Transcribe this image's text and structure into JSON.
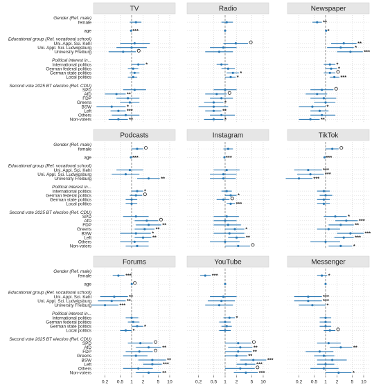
{
  "chart_data": {
    "type": "scatter",
    "subtype": "coefficient-plot (odds ratios with confidence intervals)",
    "x_scale": "log",
    "x_ticks": [
      0.2,
      0.5,
      1,
      2,
      5,
      10
    ],
    "x_tick_labels": [
      "0.2",
      "0.5",
      "1",
      "2",
      "5",
      "10"
    ],
    "xlim": [
      0.1,
      14
    ],
    "reference_line_x": 1,
    "grid": true,
    "point_color": "#2a78b4",
    "rows": [
      {
        "key": "h_gender",
        "label": "Gender (Ref. male)",
        "header": true
      },
      {
        "key": "female",
        "label": "female"
      },
      {
        "key": "gap1",
        "label": ""
      },
      {
        "key": "age",
        "label": "age"
      },
      {
        "key": "gap2",
        "label": ""
      },
      {
        "key": "h_edu",
        "label": "Educational group (Ref. vocational school)",
        "header": true
      },
      {
        "key": "kehl",
        "label": "Uni. Appl. Sci. Kehl"
      },
      {
        "key": "ludw",
        "label": "Uni. Appl. Sci. Ludwigsburg"
      },
      {
        "key": "freib",
        "label": "University Freiburg"
      },
      {
        "key": "gap3",
        "label": ""
      },
      {
        "key": "h_pol",
        "label": "Political interest in...",
        "header": true
      },
      {
        "key": "intl",
        "label": "International politics"
      },
      {
        "key": "fed",
        "label": "German federal politics"
      },
      {
        "key": "state",
        "label": "German state politics"
      },
      {
        "key": "local",
        "label": "Local politics"
      },
      {
        "key": "gap4",
        "label": ""
      },
      {
        "key": "h_vote",
        "label": "Second vote 2025 BT election (Ref. CDU)",
        "header": true
      },
      {
        "key": "spd",
        "label": "SPD"
      },
      {
        "key": "afd",
        "label": "AfD"
      },
      {
        "key": "fdp",
        "label": "FDP"
      },
      {
        "key": "greens",
        "label": "Greens"
      },
      {
        "key": "bsw",
        "label": "BSW"
      },
      {
        "key": "left",
        "label": "Left"
      },
      {
        "key": "others",
        "label": "Others"
      },
      {
        "key": "nonvoters",
        "label": "Non-voters"
      }
    ],
    "panels": [
      {
        "title": "TV",
        "est": {
          "female": [
            1.3,
            0.9,
            1.8,
            ""
          ],
          "age": [
            0.97,
            0.95,
            0.99,
            "***"
          ],
          "kehl": [
            1.2,
            0.5,
            3.0,
            ""
          ],
          "ludw": [
            1.0,
            0.4,
            2.5,
            ""
          ],
          "freib": [
            0.6,
            0.25,
            1.3,
            "o"
          ],
          "intl": [
            1.5,
            1.0,
            2.2,
            "*"
          ],
          "fed": [
            1.1,
            0.8,
            1.5,
            ""
          ],
          "state": [
            1.2,
            0.9,
            1.6,
            ""
          ],
          "local": [
            1.1,
            0.8,
            1.4,
            ""
          ],
          "spd": [
            1.2,
            0.6,
            2.4,
            ""
          ],
          "afd": [
            0.4,
            0.2,
            0.7,
            "**"
          ],
          "fdp": [
            0.8,
            0.4,
            1.6,
            ""
          ],
          "greens": [
            0.9,
            0.5,
            1.6,
            ""
          ],
          "bsw": [
            0.3,
            0.12,
            0.7,
            "*"
          ],
          "left": [
            0.45,
            0.28,
            0.7,
            "***"
          ],
          "others": [
            0.7,
            0.3,
            1.6,
            ""
          ],
          "nonvoters": [
            0.45,
            0.25,
            0.8,
            "**"
          ]
        }
      },
      {
        "title": "Radio",
        "est": {
          "female": [
            1.1,
            0.8,
            1.6,
            ""
          ],
          "age": [
            1.0,
            0.98,
            1.02,
            ""
          ],
          "kehl": [
            1.9,
            0.9,
            4.0,
            "o"
          ],
          "ludw": [
            0.9,
            0.4,
            2.0,
            ""
          ],
          "freib": [
            0.7,
            0.3,
            1.6,
            ""
          ],
          "intl": [
            0.8,
            0.6,
            1.2,
            ""
          ],
          "fed": [
            1.2,
            0.8,
            1.8,
            ""
          ],
          "state": [
            1.6,
            1.1,
            2.3,
            "*"
          ],
          "local": [
            1.4,
            1.0,
            1.9,
            "*"
          ],
          "spd": [
            1.0,
            0.5,
            2.0,
            ""
          ],
          "afd": [
            0.6,
            0.3,
            1.1,
            "o"
          ],
          "fdp": [
            0.8,
            0.4,
            1.6,
            ""
          ],
          "greens": [
            0.5,
            0.28,
            0.9,
            "*"
          ],
          "bsw": [
            0.5,
            0.2,
            1.2,
            ""
          ],
          "left": [
            0.5,
            0.3,
            0.8,
            "**"
          ],
          "others": [
            0.8,
            0.4,
            1.8,
            ""
          ],
          "nonvoters": [
            0.5,
            0.28,
            0.9,
            "*"
          ]
        }
      },
      {
        "title": "Newspaper",
        "est": {
          "female": [
            0.6,
            0.45,
            0.8,
            "**"
          ],
          "age": [
            1.03,
            1.01,
            1.05,
            "*"
          ],
          "kehl": [
            3.0,
            1.4,
            6.5,
            "**"
          ],
          "ludw": [
            2.5,
            1.1,
            5.5,
            "*"
          ],
          "freib": [
            4.5,
            2.0,
            9.5,
            "***"
          ],
          "intl": [
            1.3,
            0.9,
            1.8,
            "*"
          ],
          "fed": [
            1.4,
            1.0,
            2.0,
            "*"
          ],
          "state": [
            1.3,
            0.9,
            1.8,
            "o"
          ],
          "local": [
            1.7,
            1.3,
            2.3,
            "***"
          ],
          "spd": [
            0.8,
            0.4,
            1.6,
            "o"
          ],
          "afd": [
            0.6,
            0.3,
            1.1,
            ""
          ],
          "fdp": [
            0.9,
            0.4,
            1.9,
            ""
          ],
          "greens": [
            1.0,
            0.5,
            1.8,
            ""
          ],
          "bsw": [
            0.45,
            0.2,
            1.0,
            "*"
          ],
          "left": [
            0.7,
            0.4,
            1.2,
            ""
          ],
          "others": [
            0.8,
            0.4,
            1.8,
            ""
          ],
          "nonvoters": [
            0.4,
            0.2,
            0.7,
            "**"
          ]
        }
      },
      {
        "title": "Podcasts",
        "est": {
          "female": [
            1.4,
            1.0,
            2.0,
            "o"
          ],
          "age": [
            0.96,
            0.94,
            0.98,
            "***"
          ],
          "kehl": [
            0.9,
            0.4,
            2.0,
            ""
          ],
          "ludw": [
            0.7,
            0.3,
            1.6,
            ""
          ],
          "freib": [
            2.8,
            1.4,
            5.5,
            "**"
          ],
          "intl": [
            1.4,
            1.0,
            2.0,
            "*"
          ],
          "fed": [
            1.3,
            0.9,
            1.9,
            "o"
          ],
          "state": [
            1.0,
            0.7,
            1.4,
            ""
          ],
          "local": [
            1.0,
            0.7,
            1.4,
            ""
          ],
          "spd": [
            1.3,
            0.6,
            2.8,
            ""
          ],
          "afd": [
            2.5,
            1.2,
            5.0,
            "o"
          ],
          "fdp": [
            2.8,
            1.3,
            6.0,
            "**"
          ],
          "greens": [
            2.2,
            1.2,
            4.0,
            "**"
          ],
          "bsw": [
            1.3,
            0.5,
            3.2,
            "*"
          ],
          "left": [
            2.0,
            1.2,
            3.3,
            "**"
          ],
          "others": [
            1.2,
            0.5,
            2.8,
            ""
          ],
          "nonvoters": [
            1.4,
            0.7,
            2.8,
            ""
          ]
        }
      },
      {
        "title": "Instagram",
        "est": {
          "female": [
            1.2,
            0.9,
            1.6,
            ""
          ],
          "age": [
            0.96,
            0.94,
            0.98,
            "***"
          ],
          "kehl": [
            1.1,
            0.5,
            2.4,
            ""
          ],
          "ludw": [
            0.9,
            0.4,
            2.0,
            ""
          ],
          "freib": [
            0.9,
            0.4,
            1.9,
            ""
          ],
          "intl": [
            1.1,
            0.8,
            1.5,
            ""
          ],
          "fed": [
            1.4,
            1.0,
            2.0,
            "*"
          ],
          "state": [
            0.9,
            0.6,
            1.3,
            "o"
          ],
          "local": [
            1.4,
            1.1,
            1.8,
            "***"
          ],
          "spd": [
            1.1,
            0.5,
            2.3,
            ""
          ],
          "afd": [
            1.0,
            0.5,
            2.0,
            ""
          ],
          "fdp": [
            1.2,
            0.5,
            2.6,
            ""
          ],
          "greens": [
            1.8,
            1.0,
            3.2,
            "*"
          ],
          "bsw": [
            1.3,
            0.5,
            3.2,
            ""
          ],
          "left": [
            2.0,
            1.2,
            3.3,
            "**"
          ],
          "others": [
            1.0,
            0.4,
            2.4,
            ""
          ],
          "nonvoters": [
            2.2,
            1.0,
            4.5,
            "o"
          ]
        }
      },
      {
        "title": "TikTok",
        "est": {
          "female": [
            1.5,
            1.0,
            2.2,
            "o"
          ],
          "age": [
            0.94,
            0.92,
            0.96,
            "***"
          ],
          "kehl": [
            0.35,
            0.15,
            0.8,
            "***"
          ],
          "ludw": [
            0.4,
            0.18,
            0.9,
            "***"
          ],
          "freib": [
            0.2,
            0.09,
            0.45,
            "***"
          ],
          "intl": [
            0.9,
            0.6,
            1.3,
            ""
          ],
          "fed": [
            1.0,
            0.7,
            1.5,
            ""
          ],
          "state": [
            0.9,
            0.6,
            1.3,
            ""
          ],
          "local": [
            0.9,
            0.6,
            1.3,
            ""
          ],
          "spd": [
            1.8,
            0.9,
            3.6,
            "*"
          ],
          "afd": [
            3.5,
            1.8,
            7.0,
            "***"
          ],
          "fdp": [
            2.5,
            1.2,
            5.5,
            "**"
          ],
          "greens": [
            1.2,
            0.6,
            2.4,
            ""
          ],
          "bsw": [
            4.5,
            2.0,
            10.0,
            "***"
          ],
          "left": [
            3.0,
            1.7,
            5.5,
            "***"
          ],
          "others": [
            1.0,
            0.4,
            2.4,
            ""
          ],
          "nonvoters": [
            2.5,
            1.2,
            5.0,
            "*"
          ]
        }
      },
      {
        "title": "Forums",
        "est": {
          "female": [
            0.45,
            0.32,
            0.65,
            "***"
          ],
          "age": [
            1.01,
            0.99,
            1.03,
            "o"
          ],
          "kehl": [
            0.35,
            0.15,
            0.8,
            "**"
          ],
          "ludw": [
            0.3,
            0.13,
            0.7,
            "**"
          ],
          "freib": [
            0.2,
            0.09,
            0.45,
            "***"
          ],
          "intl": [
            1.0,
            0.7,
            1.5,
            ""
          ],
          "fed": [
            1.1,
            0.8,
            1.6,
            ""
          ],
          "state": [
            1.4,
            1.0,
            2.0,
            "*"
          ],
          "local": [
            0.7,
            0.5,
            1.0,
            "*"
          ],
          "spd": [
            1.7,
            0.8,
            3.6,
            "o"
          ],
          "afd": [
            2.8,
            1.3,
            6.0,
            "**"
          ],
          "fdp": [
            1.6,
            0.7,
            3.6,
            "o"
          ],
          "greens": [
            1.3,
            0.6,
            2.6,
            ""
          ],
          "bsw": [
            3.5,
            1.5,
            8.0,
            "**"
          ],
          "left": [
            3.5,
            2.0,
            6.2,
            "***"
          ],
          "others": [
            1.5,
            0.6,
            3.6,
            ""
          ],
          "nonvoters": [
            2.8,
            1.3,
            6.0,
            "**"
          ]
        }
      },
      {
        "title": "YouTube",
        "est": {
          "female": [
            0.3,
            0.22,
            0.42,
            "***"
          ],
          "age": [
            1.0,
            0.98,
            1.02,
            ""
          ],
          "kehl": [
            0.9,
            0.4,
            2.0,
            ""
          ],
          "ludw": [
            0.8,
            0.35,
            1.8,
            ""
          ],
          "freib": [
            0.7,
            0.3,
            1.6,
            ""
          ],
          "intl": [
            1.3,
            0.9,
            1.8,
            "*"
          ],
          "fed": [
            1.0,
            0.7,
            1.4,
            ""
          ],
          "state": [
            1.1,
            0.8,
            1.5,
            ""
          ],
          "local": [
            1.0,
            0.7,
            1.4,
            ""
          ],
          "spd": [
            2.2,
            1.0,
            4.8,
            "o"
          ],
          "afd": [
            2.5,
            1.2,
            5.2,
            "**"
          ],
          "fdp": [
            2.2,
            1.0,
            5.0,
            "**"
          ],
          "greens": [
            2.0,
            1.0,
            3.8,
            "**"
          ],
          "bsw": [
            5.5,
            2.5,
            12.0,
            "***"
          ],
          "left": [
            3.5,
            2.0,
            6.2,
            "***"
          ],
          "others": [
            2.5,
            1.0,
            6.0,
            "o"
          ],
          "nonvoters": [
            3.5,
            1.7,
            7.2,
            "***"
          ]
        }
      },
      {
        "title": "Messenger",
        "est": {
          "female": [
            0.8,
            0.6,
            1.1,
            "*"
          ],
          "age": [
            1.0,
            0.98,
            1.02,
            ""
          ],
          "kehl": [
            0.35,
            0.15,
            0.8,
            "***"
          ],
          "ludw": [
            0.35,
            0.15,
            0.8,
            "***"
          ],
          "freib": [
            0.45,
            0.2,
            1.0,
            "*"
          ],
          "intl": [
            1.0,
            0.7,
            1.4,
            ""
          ],
          "fed": [
            1.0,
            0.7,
            1.4,
            ""
          ],
          "state": [
            1.0,
            0.7,
            1.4,
            ""
          ],
          "local": [
            1.3,
            0.9,
            1.8,
            "o"
          ],
          "spd": [
            1.2,
            0.6,
            2.5,
            ""
          ],
          "afd": [
            2.5,
            1.3,
            5.0,
            "**"
          ],
          "fdp": [
            0.7,
            0.3,
            1.6,
            ""
          ],
          "greens": [
            0.9,
            0.5,
            1.7,
            ""
          ],
          "bsw": [
            1.5,
            0.6,
            3.6,
            ""
          ],
          "left": [
            1.0,
            0.6,
            1.7,
            ""
          ],
          "others": [
            0.9,
            0.4,
            2.2,
            ""
          ],
          "nonvoters": [
            2.2,
            1.0,
            4.8,
            "*"
          ]
        }
      }
    ]
  }
}
